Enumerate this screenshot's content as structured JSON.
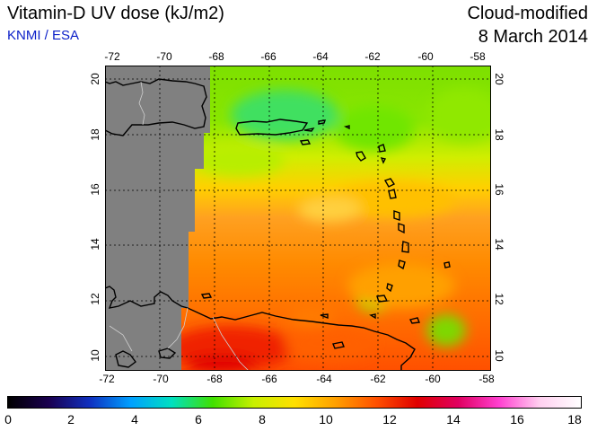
{
  "header": {
    "title": "Vitamin-D UV dose (kJ/m2)",
    "credit": "KNMI / ESA",
    "subtitle": "Cloud-modified",
    "date": "8 March 2014"
  },
  "map": {
    "lon_range": [
      -72,
      -58
    ],
    "lat_range": [
      9.5,
      20.5
    ],
    "lon_ticks": [
      "-72",
      "-70",
      "-68",
      "-66",
      "-64",
      "-62",
      "-60",
      "-58"
    ],
    "lat_ticks": [
      "10",
      "12",
      "14",
      "16",
      "18",
      "20"
    ],
    "missing_data_color": "#808080",
    "no_data_region": "west of about 68.5W (grey)"
  },
  "colorbar": {
    "min": 0,
    "max": 18,
    "ticks": [
      "0",
      "2",
      "4",
      "6",
      "8",
      "10",
      "12",
      "14",
      "16",
      "18"
    ],
    "colors": [
      "#000000",
      "#1a0050",
      "#1030c0",
      "#00a0ff",
      "#00e0c0",
      "#40e000",
      "#c8f000",
      "#ffe000",
      "#ffa000",
      "#ff5000",
      "#e00000",
      "#e00060",
      "#ff40d0",
      "#ffd0f0",
      "#ffffff"
    ]
  }
}
